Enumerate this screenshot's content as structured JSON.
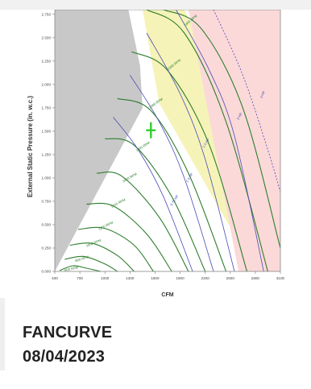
{
  "caption": {
    "title": "FANCURVE",
    "date": "08/04/2023"
  },
  "colors": {
    "stall_zone": "#c8c8c8",
    "high_efficiency": "#f6f3b8",
    "out_of_range": "#fbd9d9",
    "rpm_curve": "#2e7d2e",
    "hp_curve": "#4a4ab8",
    "operating_point": "#33cc33",
    "plot_border": "#888888"
  },
  "chart_data": {
    "type": "line",
    "title": "",
    "xlabel": "CFM",
    "ylabel": "External Static Pressure (in. w.c.)",
    "xlim": [
      400,
      3100
    ],
    "ylim": [
      0,
      2.8
    ],
    "xticks": [
      "400",
      "700",
      "1000",
      "1300",
      "1600",
      "1900",
      "2200",
      "2500",
      "2800",
      "3100"
    ],
    "yticks": [
      "0.000",
      "0.250",
      "0.500",
      "0.750",
      "1.000",
      "1.250",
      "1.500",
      "1.750",
      "2.000",
      "2.250",
      "2.500",
      "2.750"
    ],
    "grid": false,
    "regions": [
      {
        "name": "stall",
        "x": [
          400,
          400,
          1280,
          1420,
          1450
        ],
        "y": [
          0,
          2.8,
          2.8,
          2.2,
          1.75
        ]
      },
      {
        "name": "high-efficiency",
        "x": [
          1450,
          1950,
          2450,
          2800,
          2800,
          1650
        ],
        "y": [
          2.8,
          2.8,
          1.9,
          0.0,
          0.0,
          1.8
        ]
      },
      {
        "name": "out-of-range",
        "x": [
          2000,
          3100,
          3100,
          2600
        ],
        "y": [
          2.8,
          2.8,
          0.0,
          0.0
        ]
      }
    ],
    "series": [
      {
        "name": "400 RPM",
        "kind": "rpm",
        "x": [
          460,
          620,
          800,
          950
        ],
        "y": [
          0.01,
          0.06,
          0.03,
          0.0
        ]
      },
      {
        "name": "600 RPM",
        "kind": "rpm",
        "x": [
          520,
          750,
          1000,
          1150
        ],
        "y": [
          0.13,
          0.16,
          0.08,
          0.0
        ]
      },
      {
        "name": "800 RPM",
        "kind": "rpm",
        "x": [
          580,
          850,
          1150,
          1350
        ],
        "y": [
          0.28,
          0.3,
          0.17,
          0.0
        ]
      },
      {
        "name": "1000 RPM",
        "kind": "rpm",
        "x": [
          680,
          1000,
          1350,
          1580
        ],
        "y": [
          0.45,
          0.46,
          0.28,
          0.0
        ]
      },
      {
        "name": "1200 RPM",
        "kind": "rpm",
        "x": [
          780,
          1100,
          1500,
          1800
        ],
        "y": [
          0.72,
          0.7,
          0.4,
          0.0
        ]
      },
      {
        "name": "1400 RPM",
        "kind": "rpm",
        "x": [
          900,
          1200,
          1650,
          2000
        ],
        "y": [
          1.05,
          1.02,
          0.58,
          0.0
        ]
      },
      {
        "name": "1600 RPM",
        "kind": "rpm",
        "x": [
          1000,
          1350,
          1800,
          2200
        ],
        "y": [
          1.42,
          1.35,
          0.8,
          0.0
        ]
      },
      {
        "name": "1800 RPM",
        "kind": "rpm",
        "x": [
          1150,
          1550,
          2000,
          2450
        ],
        "y": [
          1.85,
          1.72,
          1.05,
          0.0
        ]
      },
      {
        "name": "2000 RPM",
        "kind": "rpm",
        "x": [
          1320,
          1750,
          2250,
          2700
        ],
        "y": [
          2.35,
          2.15,
          1.35,
          0.0
        ]
      },
      {
        "name": "2200 RPM",
        "kind": "rpm",
        "x": [
          1500,
          1950,
          2450,
          2950
        ],
        "y": [
          2.8,
          2.55,
          1.6,
          0.0
        ]
      },
      {
        "name": "2400 RPM",
        "kind": "rpm",
        "x": [
          1700,
          2150,
          2650,
          3100
        ],
        "y": [
          2.8,
          2.6,
          1.75,
          0.25
        ]
      },
      {
        "name": "0.5 HP",
        "kind": "hp",
        "x": [
          1100,
          1400,
          1700,
          2050
        ],
        "y": [
          1.65,
          1.3,
          0.8,
          0.0
        ]
      },
      {
        "name": "0.75 HP",
        "kind": "hp",
        "x": [
          1300,
          1650,
          1950,
          2300
        ],
        "y": [
          2.1,
          1.6,
          1.0,
          0.0
        ]
      },
      {
        "name": "1.0 HP",
        "kind": "hp",
        "x": [
          1500,
          1900,
          2200,
          2550
        ],
        "y": [
          2.55,
          1.9,
          1.2,
          0.0
        ]
      },
      {
        "name": "1.5 HP",
        "kind": "hp",
        "x": [
          1850,
          2250,
          2550,
          2900
        ],
        "y": [
          2.8,
          2.15,
          1.45,
          0.0
        ]
      },
      {
        "name": "2 HP",
        "kind": "hp",
        "x": [
          2300,
          2650,
          2950,
          3100
        ],
        "y": [
          2.8,
          2.1,
          1.3,
          0.85
        ]
      }
    ],
    "operating_point": {
      "x": 1550,
      "y": 1.51
    },
    "curve_labels": [
      {
        "text": "2400 RPM",
        "x": 1960,
        "y": 2.62,
        "rotate": -40
      },
      {
        "text": "2200 RPM",
        "x": 1760,
        "y": 2.15,
        "rotate": -38
      },
      {
        "text": "2000 RPM",
        "x": 1540,
        "y": 1.74,
        "rotate": -35
      },
      {
        "text": "1800 RPM",
        "x": 1380,
        "y": 1.28,
        "rotate": -32
      },
      {
        "text": "1600 RPM",
        "x": 1220,
        "y": 0.95,
        "rotate": -30
      },
      {
        "text": "1400 RPM",
        "x": 1080,
        "y": 0.68,
        "rotate": -28
      },
      {
        "text": "1200 RPM",
        "x": 930,
        "y": 0.44,
        "rotate": -26
      },
      {
        "text": "1000 RPM",
        "x": 780,
        "y": 0.26,
        "rotate": -22
      },
      {
        "text": "800 RPM",
        "x": 650,
        "y": 0.1,
        "rotate": -18
      },
      {
        "text": "600 RPM",
        "x": 520,
        "y": 0.0,
        "rotate": -12
      },
      {
        "text": "2 HP",
        "x": 2600,
        "y": 1.62,
        "rotate": -60
      },
      {
        "text": "1.5 HP",
        "x": 2190,
        "y": 1.32,
        "rotate": -60
      },
      {
        "text": "1.0 HP",
        "x": 1990,
        "y": 0.95,
        "rotate": -58
      },
      {
        "text": "0.75 HP",
        "x": 1800,
        "y": 0.7,
        "rotate": -56
      },
      {
        "text": "3 HP",
        "x": 2880,
        "y": 1.85,
        "rotate": -65
      }
    ]
  }
}
